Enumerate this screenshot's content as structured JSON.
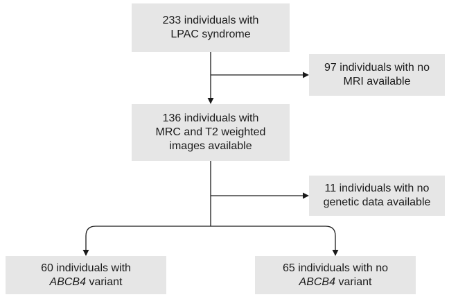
{
  "flowchart": {
    "box_total": {
      "line1": "233 individuals with",
      "line2": "LPAC syndrome"
    },
    "box_excluded_mri": {
      "line1": "97 individuals with no",
      "line2": "MRI available"
    },
    "box_mrc": {
      "line1": "136 individuals with",
      "line2": "MRC and T2 weighted",
      "line3": "images available"
    },
    "box_excluded_genetic": {
      "line1": "11 individuals with no",
      "line2": "genetic data available"
    },
    "box_abcb4_pos": {
      "line1": "60 individuals with",
      "line2_italic": "ABCB4",
      "line2_rest": " variant"
    },
    "box_abcb4_neg": {
      "line1": "65 individuals with no",
      "line2_italic": "ABCB4",
      "line2_rest": " variant"
    }
  },
  "colors": {
    "box_fill": "#e6e6e6",
    "line": "#1a1a1a"
  }
}
